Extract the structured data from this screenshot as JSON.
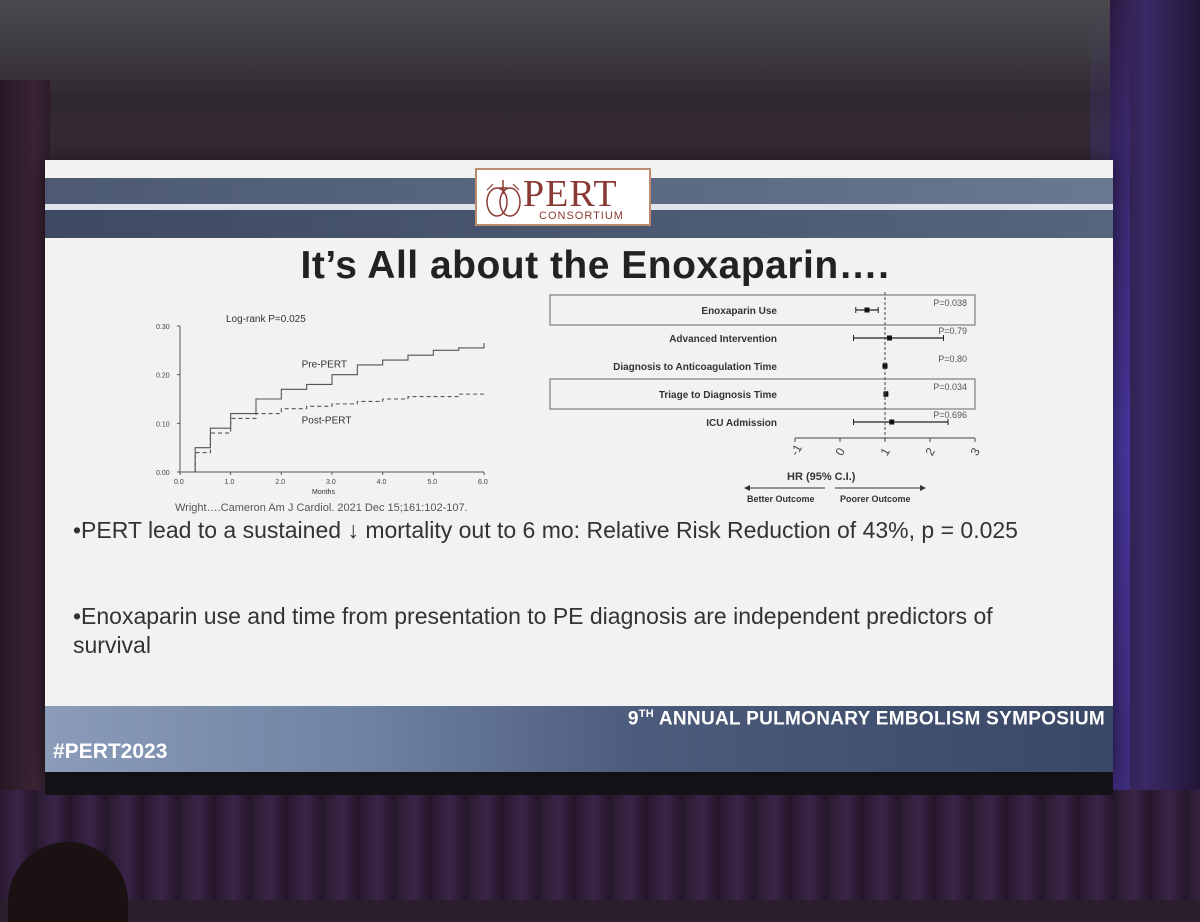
{
  "logo": {
    "main": "PERT",
    "sub": "CONSORTIUM"
  },
  "title": "It’s All about the Enoxaparin….",
  "km": {
    "logrank": "Log-rank P=0.025",
    "xlabel": "Months",
    "yticks": [
      "0.30",
      "0.20",
      "0.10",
      "0.00"
    ],
    "xticks": [
      "0.0",
      "1.0",
      "2.0",
      "3.0",
      "4.0",
      "5.0",
      "6.0"
    ],
    "series": [
      {
        "name": "Pre-PERT",
        "x": [
          0,
          0.3,
          0.6,
          1,
          1.5,
          2,
          2.5,
          3,
          3.5,
          4,
          4.5,
          5,
          5.5,
          6
        ],
        "y": [
          0,
          0.05,
          0.09,
          0.12,
          0.15,
          0.17,
          0.18,
          0.2,
          0.22,
          0.23,
          0.24,
          0.25,
          0.255,
          0.265
        ]
      },
      {
        "name": "Post-PERT",
        "x": [
          0,
          0.3,
          0.6,
          1,
          1.5,
          2,
          2.5,
          3,
          3.5,
          4,
          4.5,
          5,
          5.5,
          6
        ],
        "y": [
          0,
          0.04,
          0.08,
          0.11,
          0.12,
          0.13,
          0.135,
          0.14,
          0.145,
          0.15,
          0.155,
          0.155,
          0.16,
          0.16
        ]
      }
    ]
  },
  "forest": {
    "rows": [
      {
        "label": "Enoxaparin Use",
        "p": "P=0.038",
        "hr": 0.6,
        "lo": 0.35,
        "hi": 0.85
      },
      {
        "label": "Advanced Intervention",
        "p": "P=0.79",
        "hr": 1.1,
        "lo": 0.3,
        "hi": 2.3
      },
      {
        "label": "Diagnosis to Anticoagulation Time",
        "p": "P=0.80",
        "hr": 1.0,
        "lo": 0.97,
        "hi": 1.03
      },
      {
        "label": "Triage to Diagnosis Time",
        "p": "P=0.034",
        "hr": 1.02,
        "lo": 1.0,
        "hi": 1.05
      },
      {
        "label": "ICU Admission",
        "p": "P=0.696",
        "hr": 1.15,
        "lo": 0.3,
        "hi": 2.4
      }
    ],
    "xticks": [
      "-1",
      "0",
      "1",
      "2",
      "3"
    ],
    "xlabel": "HR (95% C.I.)",
    "better": "Better Outcome",
    "poorer": "Poorer Outcome"
  },
  "citation": "Wright….Cameron Am J Cardiol. 2021 Dec 15;161:102-107.",
  "bullets": [
    "•PERT lead to a sustained ↓ mortality out to 6 mo:  Relative Risk Reduction of 43%, p = 0.025",
    "•Enoxaparin use and time from presentation to PE diagnosis are independent predictors of survival"
  ],
  "footer": {
    "ordinal": "9",
    "suffix": "TH",
    "title": " ANNUAL PULMONARY EMBOLISM SYMPOSIUM",
    "hashtag": "#PERT2023"
  },
  "chart_data": [
    {
      "type": "line",
      "title": "Log-rank P=0.025",
      "xlabel": "Months",
      "ylabel": "",
      "xlim": [
        0,
        6
      ],
      "ylim": [
        0,
        0.3
      ],
      "series": [
        {
          "name": "Pre-PERT",
          "x": [
            0,
            0.3,
            0.6,
            1,
            1.5,
            2,
            2.5,
            3,
            3.5,
            4,
            4.5,
            5,
            5.5,
            6
          ],
          "y": [
            0,
            0.05,
            0.09,
            0.12,
            0.15,
            0.17,
            0.18,
            0.2,
            0.22,
            0.23,
            0.24,
            0.25,
            0.255,
            0.265
          ]
        },
        {
          "name": "Post-PERT",
          "x": [
            0,
            0.3,
            0.6,
            1,
            1.5,
            2,
            2.5,
            3,
            3.5,
            4,
            4.5,
            5,
            5.5,
            6
          ],
          "y": [
            0,
            0.04,
            0.08,
            0.11,
            0.12,
            0.13,
            0.135,
            0.14,
            0.145,
            0.15,
            0.155,
            0.155,
            0.16,
            0.16
          ]
        }
      ]
    },
    {
      "type": "scatter",
      "xlabel": "HR (95% C.I.)",
      "xlim": [
        -1,
        3
      ],
      "categories": [
        "Enoxaparin Use",
        "Advanced Intervention",
        "Diagnosis to Anticoagulation Time",
        "Triage to Diagnosis Time",
        "ICU Admission"
      ],
      "values": [
        0.6,
        1.1,
        1.0,
        1.02,
        1.15
      ],
      "p_values": [
        "P=0.038",
        "P=0.79",
        "P=0.80",
        "P=0.034",
        "P=0.696"
      ]
    }
  ]
}
